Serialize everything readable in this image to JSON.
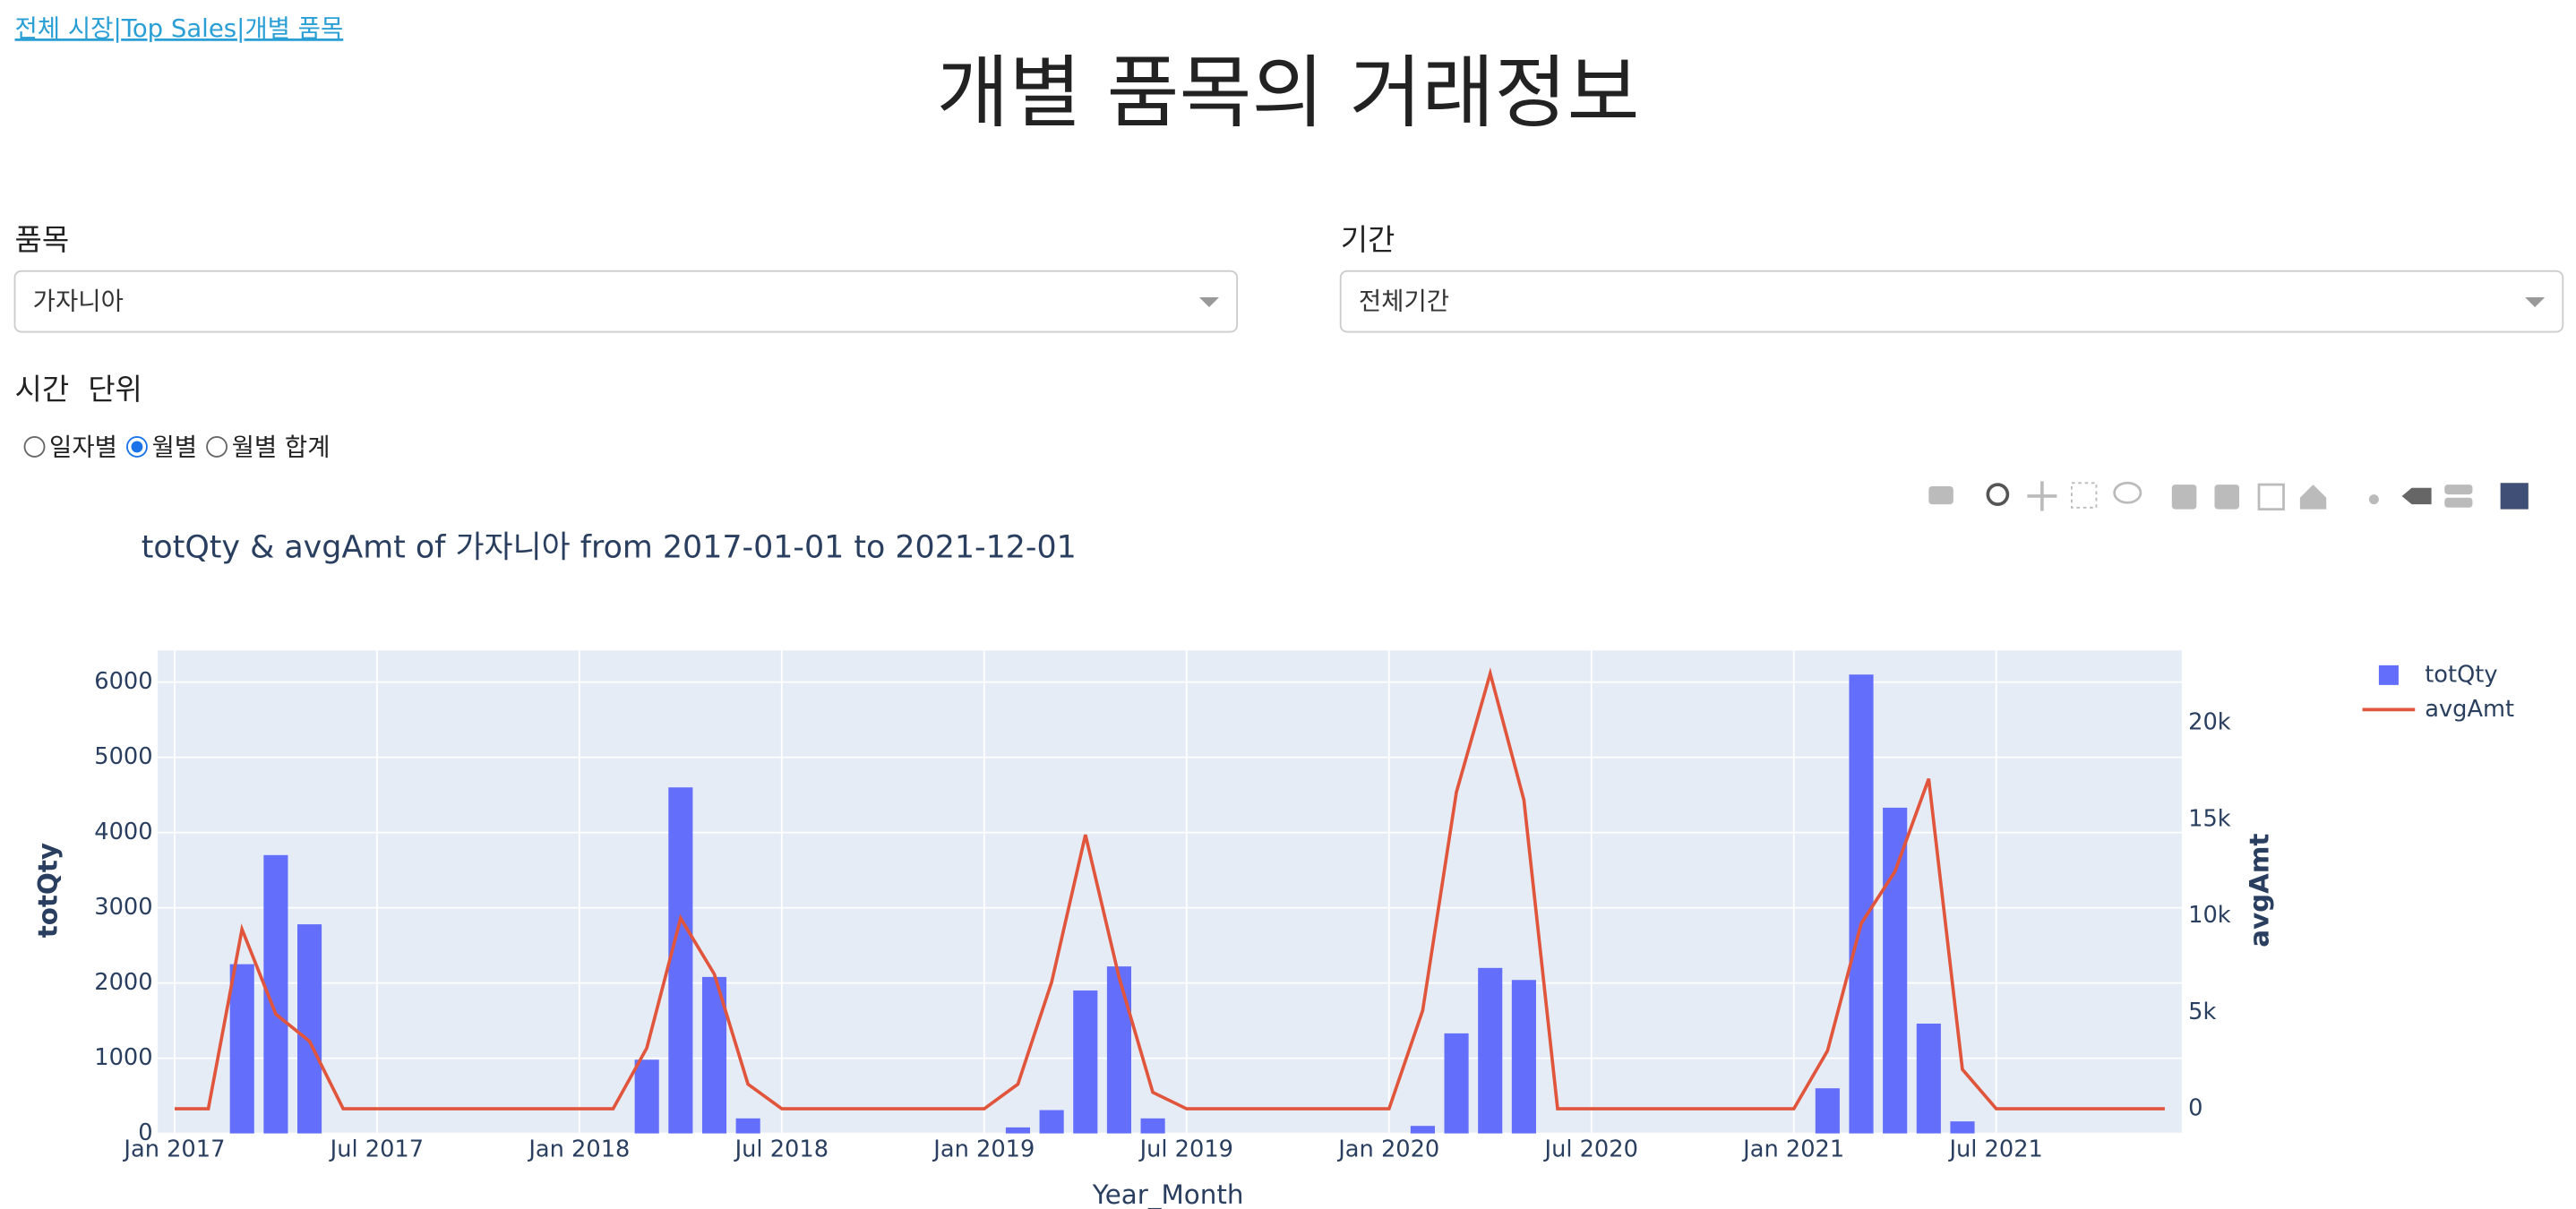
{
  "nav": {
    "links": [
      "전체 시장",
      "Top Sales",
      "개별 품목"
    ],
    "separator": "|"
  },
  "header": {
    "title": "개별 품목의 거래정보"
  },
  "filters": [
    {
      "label": "품목",
      "value": "가자니아"
    },
    {
      "label": "기간",
      "value": "전체기간"
    }
  ],
  "time_unit": {
    "label": "시간  단위",
    "options": [
      "일자별",
      "월별",
      "월별 합계"
    ],
    "selected": 1
  },
  "chart_data": {
    "type": "bar-line",
    "title": "totQty & avgAmt of 가자니아 from 2017-01-01 to 2021-12-01",
    "xlabel": "Year_Month",
    "ylabel": "totQty",
    "y2label": "avgAmt",
    "x": [
      "2017-01",
      "2017-02",
      "2017-03",
      "2017-04",
      "2017-05",
      "2017-06",
      "2017-07",
      "2017-08",
      "2017-09",
      "2017-10",
      "2017-11",
      "2017-12",
      "2018-01",
      "2018-02",
      "2018-03",
      "2018-04",
      "2018-05",
      "2018-06",
      "2018-07",
      "2018-08",
      "2018-09",
      "2018-10",
      "2018-11",
      "2018-12",
      "2019-01",
      "2019-02",
      "2019-03",
      "2019-04",
      "2019-05",
      "2019-06",
      "2019-07",
      "2019-08",
      "2019-09",
      "2019-10",
      "2019-11",
      "2019-12",
      "2020-01",
      "2020-02",
      "2020-03",
      "2020-04",
      "2020-05",
      "2020-06",
      "2020-07",
      "2020-08",
      "2020-09",
      "2020-10",
      "2020-11",
      "2020-12",
      "2021-01",
      "2021-02",
      "2021-03",
      "2021-04",
      "2021-05",
      "2021-06",
      "2021-07",
      "2021-08",
      "2021-09",
      "2021-10",
      "2021-11",
      "2021-12"
    ],
    "series": [
      {
        "name": "totQty",
        "type": "bar",
        "color": "#636efa",
        "values": [
          0,
          0,
          2250,
          3700,
          2780,
          0,
          0,
          0,
          0,
          0,
          0,
          0,
          0,
          0,
          980,
          4600,
          2080,
          200,
          0,
          0,
          0,
          0,
          0,
          0,
          0,
          80,
          310,
          1900,
          2220,
          200,
          0,
          0,
          0,
          0,
          0,
          0,
          0,
          100,
          1330,
          2200,
          2040,
          0,
          0,
          0,
          0,
          0,
          0,
          0,
          0,
          600,
          6100,
          4330,
          1460,
          160,
          0,
          0,
          0,
          0,
          0,
          0
        ]
      },
      {
        "name": "avgAmt",
        "type": "line",
        "axis": "y2",
        "color": "#e0553b",
        "values": [
          0,
          0,
          9300,
          4900,
          3500,
          0,
          0,
          0,
          0,
          0,
          0,
          0,
          0,
          0,
          3150,
          9870,
          6980,
          1280,
          0,
          0,
          0,
          0,
          0,
          0,
          0,
          1280,
          6550,
          14200,
          6800,
          850,
          0,
          0,
          0,
          0,
          0,
          0,
          0,
          5100,
          16400,
          22550,
          16000,
          0,
          0,
          0,
          0,
          0,
          0,
          0,
          0,
          3000,
          9600,
          12300,
          17100,
          2040,
          0,
          0,
          0,
          0,
          0,
          0
        ]
      }
    ],
    "ylim": [
      0,
      6420
    ],
    "yticks": [
      0,
      1000,
      2000,
      3000,
      4000,
      5000,
      6000
    ],
    "y2lim": [
      -1277,
      23745
    ],
    "y2ticks": [
      0,
      {
        "value": 5000,
        "label": "5k"
      },
      {
        "value": 10000,
        "label": "10k"
      },
      {
        "value": 15000,
        "label": "15k"
      },
      {
        "value": 20000,
        "label": "20k"
      }
    ],
    "xticks": [
      {
        "value": "2017-01",
        "label": "Jan 2017"
      },
      {
        "value": "2017-07",
        "label": "Jul 2017"
      },
      {
        "value": "2018-01",
        "label": "Jan 2018"
      },
      {
        "value": "2018-07",
        "label": "Jul 2018"
      },
      {
        "value": "2019-01",
        "label": "Jan 2019"
      },
      {
        "value": "2019-07",
        "label": "Jul 2019"
      },
      {
        "value": "2020-01",
        "label": "Jan 2020"
      },
      {
        "value": "2020-07",
        "label": "Jul 2020"
      },
      {
        "value": "2021-01",
        "label": "Jan 2021"
      },
      {
        "value": "2021-07",
        "label": "Jul 2021"
      }
    ],
    "grid": true,
    "legend": "top-right"
  }
}
